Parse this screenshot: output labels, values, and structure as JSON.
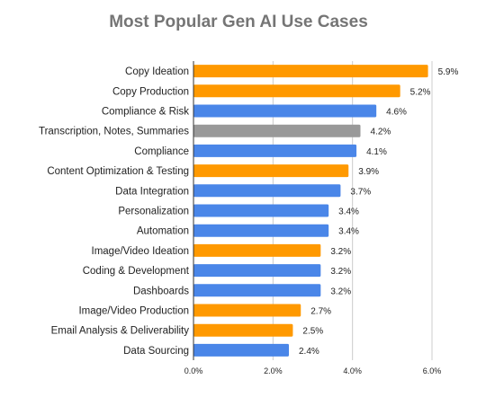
{
  "chart_data": {
    "type": "bar",
    "orientation": "horizontal",
    "title": "Most Popular Gen AI Use Cases",
    "xlabel": "",
    "ylabel": "",
    "xlim": [
      0,
      6.0
    ],
    "x_ticks": [
      "0.0%",
      "2.0%",
      "4.0%",
      "6.0%"
    ],
    "grid": "vertical gridlines at 2.0% intervals",
    "legend": "none",
    "colors": {
      "orange": "#FF9900",
      "blue": "#4A86E8",
      "gray": "#999999"
    },
    "categories": [
      "Copy Ideation",
      "Copy Production",
      "Compliance & Risk",
      "Transcription, Notes, Summaries",
      "Compliance",
      "Content Optimization & Testing",
      "Data Integration",
      "Personalization",
      "Automation",
      "Image/Video Ideation",
      "Coding & Development",
      "Dashboards",
      "Image/Video Production",
      "Email Analysis & Deliverability",
      "Data Sourcing"
    ],
    "values": [
      5.9,
      5.2,
      4.6,
      4.2,
      4.1,
      3.9,
      3.7,
      3.4,
      3.4,
      3.2,
      3.2,
      3.2,
      2.7,
      2.5,
      2.4
    ],
    "value_labels": [
      "5.9%",
      "5.2%",
      "4.6%",
      "4.2%",
      "4.1%",
      "3.9%",
      "3.7%",
      "3.4%",
      "3.4%",
      "3.2%",
      "3.2%",
      "3.2%",
      "2.7%",
      "2.5%",
      "2.4%"
    ],
    "bar_colors": [
      "orange",
      "orange",
      "blue",
      "gray",
      "blue",
      "orange",
      "blue",
      "blue",
      "blue",
      "orange",
      "blue",
      "blue",
      "orange",
      "orange",
      "blue"
    ]
  }
}
